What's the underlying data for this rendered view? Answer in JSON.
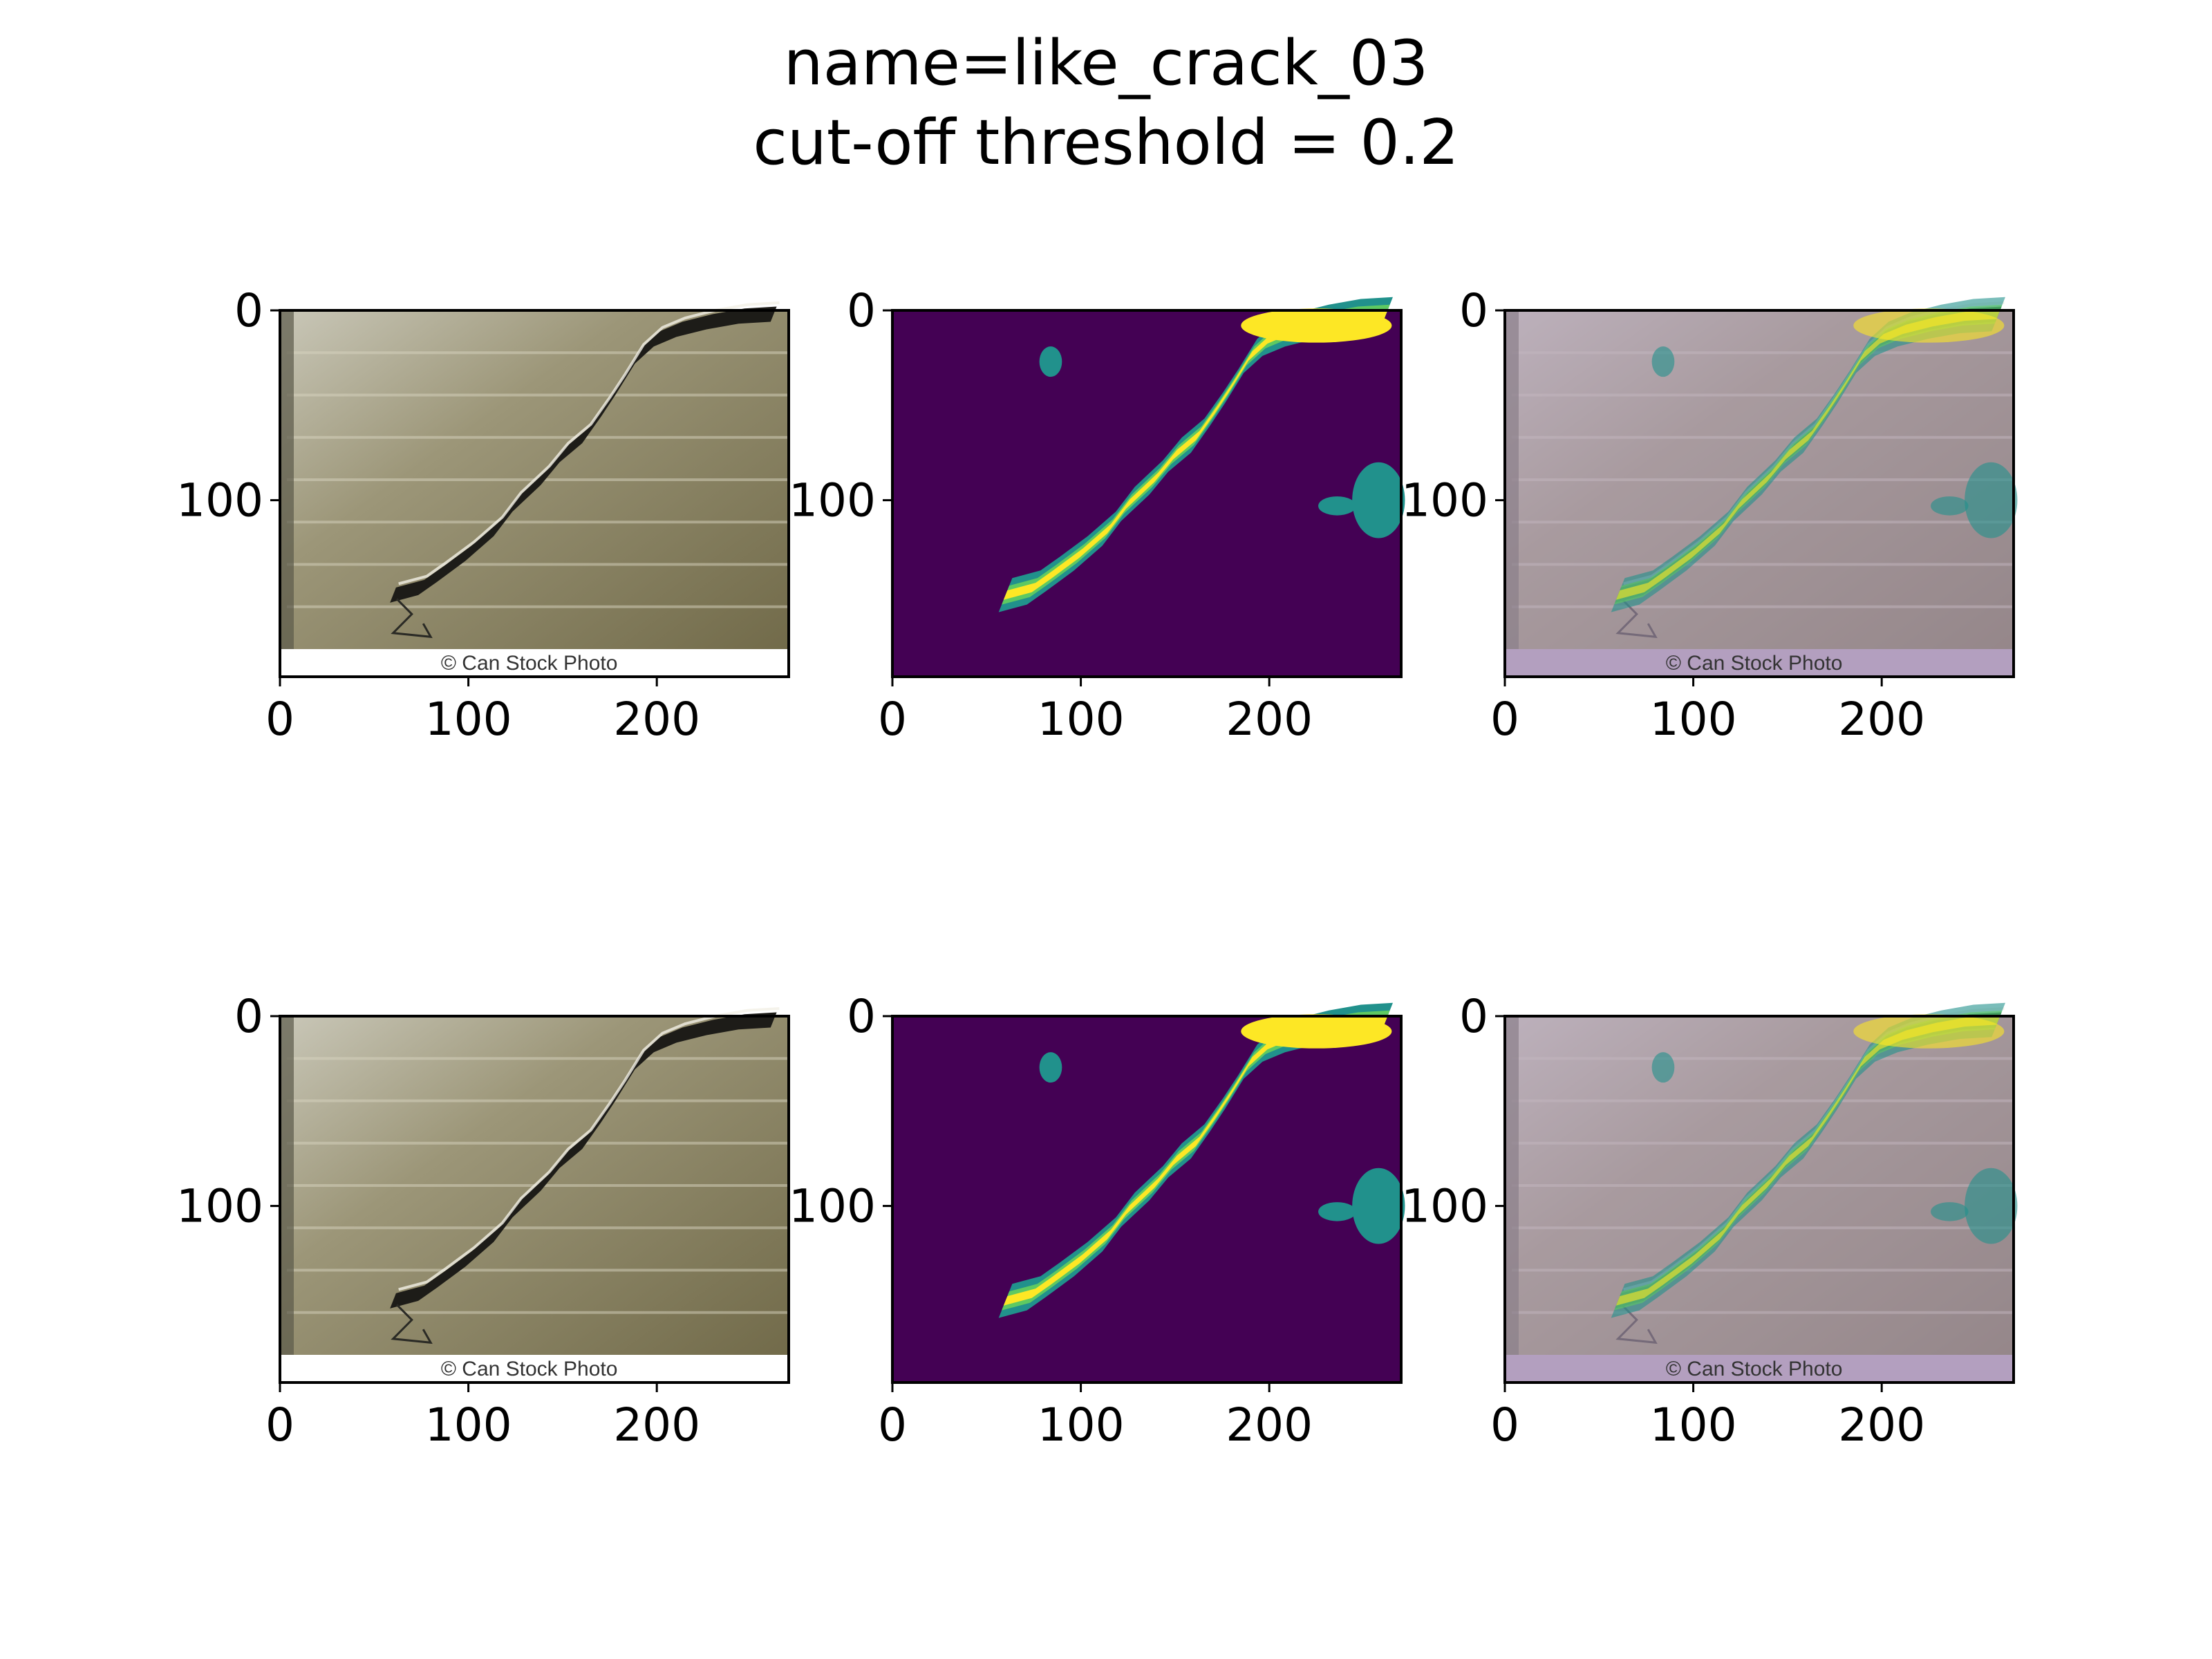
{
  "figure": {
    "title_line1": "name=like_crack_03",
    "title_line2": "cut-off threshold = 0.2"
  },
  "colors": {
    "viridis_bg": "#440154",
    "viridis_mid": "#21918c",
    "viridis_hi": "#fde725",
    "wall_base": "#8c8565",
    "overlay_tint": "#b39fbf"
  },
  "chart_data": [
    {
      "type": "heatmap",
      "panel": "original-image",
      "row": 1,
      "col": 1,
      "content": "photo",
      "xticks": [
        0,
        100,
        200
      ],
      "yticks": [
        0,
        100
      ],
      "xlim": [
        0,
        270
      ],
      "ylim": [
        193,
        0
      ],
      "watermark": "© Can Stock Photo"
    },
    {
      "type": "heatmap",
      "panel": "prediction-map",
      "row": 1,
      "col": 2,
      "content": "heatmap",
      "xticks": [
        0,
        100,
        200
      ],
      "yticks": [
        0,
        100
      ],
      "xlim": [
        0,
        270
      ],
      "ylim": [
        193,
        0
      ],
      "colormap": "viridis"
    },
    {
      "type": "heatmap",
      "panel": "overlay",
      "row": 1,
      "col": 3,
      "content": "overlay",
      "xticks": [
        0,
        100,
        200
      ],
      "yticks": [
        0,
        100
      ],
      "xlim": [
        0,
        270
      ],
      "ylim": [
        193,
        0
      ],
      "watermark": "© Can Stock Photo"
    },
    {
      "type": "heatmap",
      "panel": "original-image",
      "row": 2,
      "col": 1,
      "content": "photo",
      "xticks": [
        0,
        100,
        200
      ],
      "yticks": [
        0,
        100
      ],
      "xlim": [
        0,
        270
      ],
      "ylim": [
        193,
        0
      ],
      "watermark": "© Can Stock Photo"
    },
    {
      "type": "heatmap",
      "panel": "prediction-map",
      "row": 2,
      "col": 2,
      "content": "heatmap",
      "xticks": [
        0,
        100,
        200
      ],
      "yticks": [
        0,
        100
      ],
      "xlim": [
        0,
        270
      ],
      "ylim": [
        193,
        0
      ],
      "colormap": "viridis"
    },
    {
      "type": "heatmap",
      "panel": "overlay",
      "row": 2,
      "col": 3,
      "content": "overlay",
      "xticks": [
        0,
        100,
        200
      ],
      "yticks": [
        0,
        100
      ],
      "xlim": [
        0,
        270
      ],
      "ylim": [
        193,
        0
      ],
      "watermark": "© Can Stock Photo"
    }
  ]
}
